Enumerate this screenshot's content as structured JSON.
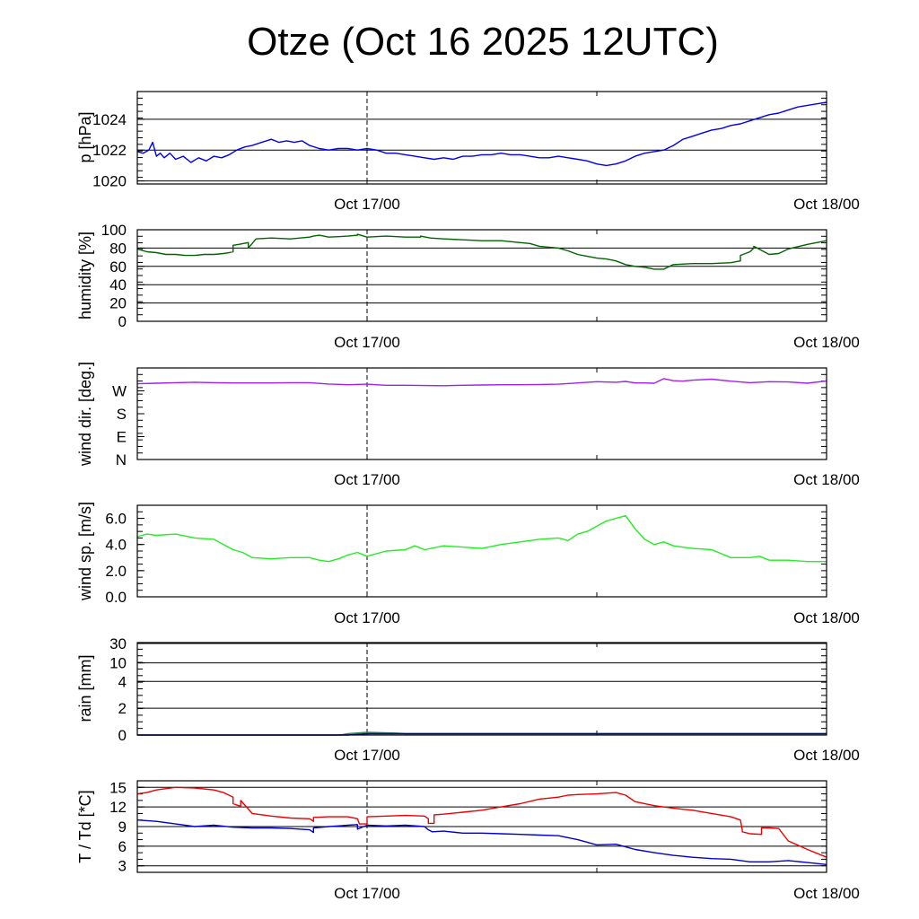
{
  "title": "Otze (Oct 16 2025 12UTC)",
  "colors": {
    "pressure": "#0000ee",
    "humidity": "#006400",
    "wind_dir": "#a020f0",
    "wind_speed": "#22ee22",
    "rain_a": "#0000aa",
    "rain_b": "#2e8b57",
    "temperature": "#ee0000",
    "dewpoint": "#0000cc"
  },
  "chart_data": [
    {
      "id": "pressure",
      "type": "line",
      "ylabel": "p [hPa]",
      "xticklabels": [
        "Oct 17/00",
        "Oct 18/00"
      ],
      "xlim": [
        0,
        36
      ],
      "ylim": [
        1019.8,
        1025.8
      ],
      "yticks": [
        1020,
        1022,
        1024
      ],
      "yticklabels": [
        "1020",
        "1022",
        "1024"
      ],
      "hgrid": [
        1020,
        1022,
        1024
      ],
      "series": [
        {
          "color_key": "pressure",
          "x": [
            0,
            0.3,
            0.6,
            0.8,
            1.0,
            1.2,
            1.4,
            1.7,
            2.0,
            2.4,
            2.8,
            3.2,
            3.6,
            4.0,
            4.4,
            4.8,
            5.2,
            5.6,
            6.0,
            6.5,
            7.0,
            7.4,
            7.8,
            8.2,
            8.6,
            9.0,
            9.5,
            10.0,
            10.5,
            11.0,
            11.5,
            12.0,
            12.5,
            13.0,
            13.5,
            14.0,
            14.5,
            15.0,
            15.5,
            16.0,
            16.5,
            17.0,
            17.5,
            18.0,
            18.5,
            19.0,
            19.5,
            20.0,
            20.5,
            21.0,
            21.5,
            22.0,
            22.5,
            23.0,
            23.5,
            24.0,
            24.5,
            25.0,
            25.5,
            26.0,
            26.5,
            27.0,
            27.5,
            28.0,
            28.5,
            29.0,
            29.5,
            30.0,
            30.5,
            31.0,
            31.5,
            32.0,
            32.5,
            33.0,
            33.5,
            34.0,
            34.5,
            35.0,
            35.5,
            36.0
          ],
          "y": [
            1021.9,
            1021.8,
            1022.0,
            1022.5,
            1021.6,
            1021.8,
            1021.5,
            1021.8,
            1021.4,
            1021.6,
            1021.2,
            1021.5,
            1021.3,
            1021.6,
            1021.5,
            1021.7,
            1022.0,
            1022.2,
            1022.3,
            1022.5,
            1022.7,
            1022.5,
            1022.6,
            1022.5,
            1022.6,
            1022.3,
            1022.1,
            1022.0,
            1022.1,
            1022.1,
            1022.0,
            1022.1,
            1022.0,
            1021.8,
            1021.8,
            1021.7,
            1021.6,
            1021.5,
            1021.4,
            1021.5,
            1021.4,
            1021.6,
            1021.6,
            1021.7,
            1021.7,
            1021.8,
            1021.7,
            1021.7,
            1021.6,
            1021.5,
            1021.5,
            1021.6,
            1021.5,
            1021.4,
            1021.3,
            1021.1,
            1021.0,
            1021.1,
            1021.3,
            1021.6,
            1021.8,
            1021.9,
            1022.0,
            1022.3,
            1022.7,
            1022.9,
            1023.1,
            1023.3,
            1023.4,
            1023.6,
            1023.7,
            1023.9,
            1024.1,
            1024.3,
            1024.4,
            1024.6,
            1024.8,
            1024.9,
            1025.0,
            1025.1
          ]
        }
      ]
    },
    {
      "id": "humidity",
      "type": "line",
      "ylabel": "humidity [%]",
      "xticklabels": [
        "Oct 17/00",
        "Oct 18/00"
      ],
      "xlim": [
        0,
        36
      ],
      "ylim": [
        0,
        100
      ],
      "yticks": [
        0,
        20,
        40,
        60,
        80,
        100
      ],
      "yticklabels": [
        "0",
        "20",
        "40",
        "60",
        "80",
        "100"
      ],
      "hgrid": [
        20,
        40,
        60,
        80
      ],
      "series": [
        {
          "color_key": "humidity",
          "x": [
            0,
            0.5,
            1.0,
            1.5,
            2.0,
            2.5,
            3.0,
            3.5,
            4.0,
            4.5,
            4.8,
            5.0,
            5.0,
            5.3,
            5.8,
            5.8,
            6.2,
            7.0,
            8.0,
            9.0,
            9.2,
            9.5,
            10.0,
            11.0,
            11.5,
            11.5,
            12.0,
            13.0,
            14.0,
            14.8,
            14.8,
            15.3,
            16.0,
            17.0,
            18.0,
            19.0,
            20.0,
            20.5,
            21.0,
            22.0,
            22.5,
            23.0,
            23.5,
            24.0,
            24.5,
            25.0,
            25.5,
            26.0,
            26.5,
            27.0,
            27.5,
            28.0,
            29.0,
            30.0,
            31.0,
            31.5,
            31.5,
            32.0,
            32.2,
            32.2,
            33.0,
            33.5,
            34.0,
            35.0,
            36.0
          ],
          "y": [
            79,
            76,
            75,
            73,
            73,
            72,
            72,
            73,
            73,
            74,
            75,
            76,
            83,
            84,
            86,
            80,
            90,
            91,
            90,
            92,
            93,
            94,
            92,
            93,
            94,
            95,
            92,
            93,
            92,
            92,
            93,
            91,
            90,
            89,
            88,
            88,
            86,
            85,
            82,
            80,
            77,
            73,
            71,
            69,
            68,
            66,
            62,
            60,
            59,
            57,
            57,
            62,
            63,
            63,
            64,
            66,
            72,
            76,
            80,
            82,
            73,
            74,
            79,
            84,
            88
          ]
        }
      ]
    },
    {
      "id": "wind_direction",
      "type": "line",
      "ylabel": "wind dir. [deg.]",
      "xticklabels": [
        "Oct 17/00",
        "Oct 18/00"
      ],
      "xlim": [
        0,
        36
      ],
      "ylim": [
        0,
        360
      ],
      "yticks": [
        0,
        90,
        180,
        270
      ],
      "yticklabels": [
        "N",
        "E",
        "S",
        "W"
      ],
      "hgrid": [],
      "series": [
        {
          "color_key": "wind_dir",
          "x": [
            0,
            1,
            2,
            3,
            4,
            5,
            6,
            7,
            8,
            9,
            10,
            11,
            12,
            13,
            14,
            15,
            16,
            17,
            18,
            19,
            20,
            21,
            22,
            23,
            24,
            25,
            25.5,
            26,
            26.5,
            27,
            27.5,
            28,
            28.5,
            29,
            30,
            31,
            32,
            33,
            34,
            35,
            36
          ],
          "y": [
            298,
            300,
            302,
            304,
            302,
            301,
            301,
            301,
            302,
            302,
            297,
            294,
            296,
            292,
            292,
            291,
            290,
            292,
            293,
            294,
            294,
            295,
            296,
            301,
            306,
            304,
            307,
            301,
            301,
            300,
            318,
            310,
            308,
            312,
            316,
            308,
            302,
            306,
            305,
            300,
            309
          ]
        }
      ]
    },
    {
      "id": "wind_speed",
      "type": "line",
      "ylabel": "wind sp. [m/s]",
      "xticklabels": [
        "Oct 17/00",
        "Oct 18/00"
      ],
      "xlim": [
        0,
        36
      ],
      "ylim": [
        0,
        7.0
      ],
      "yticks": [
        0,
        2,
        4,
        6
      ],
      "yticklabels": [
        "0.0",
        "2.0",
        "4.0",
        "6.0"
      ],
      "hgrid": [],
      "series": [
        {
          "color_key": "wind_speed",
          "x": [
            0,
            0.5,
            1.0,
            2.0,
            3.0,
            4.0,
            4.5,
            5.0,
            5.5,
            6.0,
            7.0,
            8.0,
            9.0,
            9.5,
            10.0,
            10.5,
            11.0,
            11.5,
            12.0,
            13.0,
            14.0,
            14.5,
            15.0,
            16.0,
            17.0,
            18.0,
            19.0,
            20.0,
            21.0,
            22.0,
            22.5,
            23.0,
            23.5,
            24.0,
            24.5,
            25.0,
            25.5,
            26.0,
            26.5,
            27.0,
            27.5,
            28.0,
            29.0,
            30.0,
            31.0,
            32.0,
            32.5,
            33.0,
            34.0,
            35.0,
            36.0
          ],
          "y": [
            4.6,
            4.8,
            4.7,
            4.8,
            4.5,
            4.4,
            4.0,
            3.6,
            3.4,
            3.0,
            2.9,
            3.0,
            3.0,
            2.8,
            2.7,
            2.9,
            3.2,
            3.4,
            3.1,
            3.5,
            3.6,
            3.9,
            3.6,
            3.9,
            3.8,
            3.7,
            4.0,
            4.2,
            4.4,
            4.5,
            4.3,
            4.8,
            5.0,
            5.4,
            5.8,
            6.0,
            6.2,
            5.2,
            4.4,
            4.0,
            4.2,
            3.9,
            3.7,
            3.6,
            3.0,
            3.0,
            3.1,
            2.8,
            2.8,
            2.7,
            2.7
          ]
        }
      ]
    },
    {
      "id": "rain",
      "type": "area",
      "ylabel": "rain [mm]",
      "xticklabels": [
        "Oct 17/00",
        "Oct 18/00"
      ],
      "xlim": [
        0,
        36
      ],
      "ylim": [
        0,
        30
      ],
      "yticks": [
        0,
        2,
        4,
        10,
        30
      ],
      "yticklabels": [
        "0",
        "2",
        "4",
        "10",
        "30"
      ],
      "hgrid": [
        2,
        4,
        10,
        30
      ],
      "series": [
        {
          "color_key": "rain_b",
          "x": [
            0,
            10.6,
            11.0,
            12.0,
            13.5,
            14.0,
            36.0
          ],
          "y": [
            0,
            0,
            0.1,
            0.2,
            0.15,
            0.1,
            0.1
          ]
        },
        {
          "color_key": "rain_a",
          "x": [
            0,
            11.0,
            12.0,
            36.0
          ],
          "y": [
            0,
            0,
            0.1,
            0.1
          ]
        }
      ]
    },
    {
      "id": "temperature",
      "type": "line",
      "ylabel": "T / Td [*C]",
      "xticklabels": [
        "Oct 17/00",
        "Oct 18/00"
      ],
      "xlim": [
        0,
        36
      ],
      "ylim": [
        2,
        16
      ],
      "yticks": [
        3,
        6,
        9,
        12,
        15
      ],
      "yticklabels": [
        "3",
        "6",
        "9",
        "12",
        "15"
      ],
      "hgrid": [
        3,
        6,
        9,
        12,
        15
      ],
      "series": [
        {
          "color_key": "temperature",
          "x": [
            0,
            0.5,
            1,
            1.5,
            2,
            3,
            4,
            4.5,
            5,
            5.0,
            5.4,
            5.4,
            6,
            7,
            8,
            9,
            9.2,
            9.2,
            10,
            11,
            11.5,
            11.6,
            12,
            12,
            13,
            14,
            15,
            15.2,
            15.2,
            15.5,
            15.5,
            16,
            17,
            18,
            19,
            20,
            21,
            22,
            22.5,
            23,
            24,
            25,
            25.5,
            26,
            27,
            28,
            29,
            30,
            31,
            31.5,
            31.6,
            31.6,
            32,
            32.6,
            32.6,
            33,
            33.5,
            34,
            35,
            36
          ],
          "y": [
            14,
            14.2,
            14.6,
            14.8,
            15,
            14.9,
            14.6,
            14.2,
            13.5,
            12.5,
            12.1,
            13,
            11,
            10.6,
            10.3,
            10.2,
            9.8,
            10.4,
            10.5,
            10.5,
            10.2,
            9.4,
            9.4,
            10.5,
            10.6,
            10.7,
            10.6,
            10.2,
            9.5,
            9.5,
            10.8,
            10.9,
            11.2,
            11.5,
            12,
            12.5,
            13.2,
            13.5,
            13.8,
            13.9,
            14,
            14.2,
            13.8,
            12.8,
            12.2,
            11.8,
            11.5,
            11,
            10.5,
            10,
            8.5,
            8.2,
            7.9,
            7.8,
            8.8,
            8.8,
            8.7,
            6.8,
            5.5,
            4.3
          ]
        },
        {
          "color_key": "dewpoint",
          "x": [
            0,
            1,
            2,
            3,
            4,
            5,
            6,
            7,
            8,
            9,
            9.2,
            9.2,
            10,
            11,
            11.5,
            11.5,
            12,
            13,
            14,
            15,
            15.2,
            15.4,
            16,
            17,
            18,
            19,
            20,
            21,
            22,
            23,
            24,
            25,
            25.5,
            26,
            27,
            28,
            29,
            30,
            31,
            32,
            33,
            34,
            35,
            36
          ],
          "y": [
            10,
            9.8,
            9.4,
            9,
            9.2,
            8.9,
            8.8,
            8.8,
            8.7,
            8.5,
            8.1,
            8.8,
            9,
            9.2,
            9.3,
            8.6,
            9.2,
            9.1,
            9.2,
            9,
            8.5,
            8.2,
            8.3,
            8.0,
            8.0,
            7.9,
            7.8,
            7.7,
            7.6,
            7.0,
            6.2,
            6.3,
            5.9,
            5.5,
            5.0,
            4.6,
            4.3,
            4.1,
            4.0,
            3.6,
            3.6,
            3.8,
            3.5,
            3.2
          ]
        }
      ]
    }
  ]
}
